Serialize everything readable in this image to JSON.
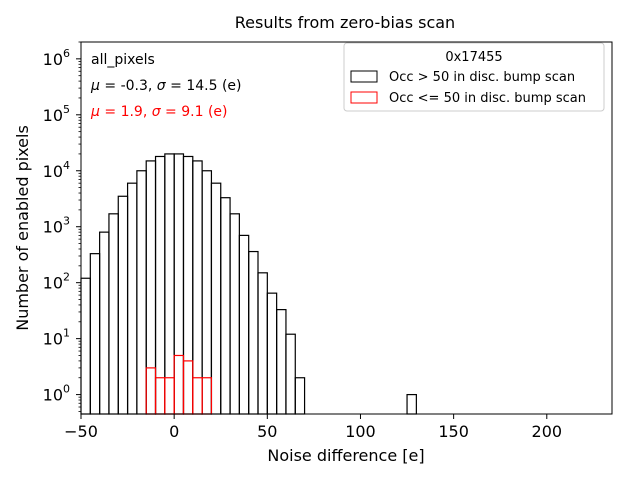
{
  "chart_data": {
    "type": "histogram",
    "title": "Results from zero-bias scan",
    "xlabel": "Noise difference [e]",
    "ylabel": "Number of enabled pixels",
    "xlim": [
      -50,
      235
    ],
    "ylim": [
      0.45,
      2000000
    ],
    "yscale": "log",
    "xticks": [
      -50,
      0,
      50,
      100,
      150,
      200
    ],
    "xtick_labels": [
      "−50",
      "0",
      "50",
      "100",
      "150",
      "200"
    ],
    "yticks": [
      1,
      10,
      100,
      1000,
      10000,
      100000,
      1000000
    ],
    "ytick_labels": [
      {
        "base": "10",
        "exp": "0"
      },
      {
        "base": "10",
        "exp": "1"
      },
      {
        "base": "10",
        "exp": "2"
      },
      {
        "base": "10",
        "exp": "3"
      },
      {
        "base": "10",
        "exp": "4"
      },
      {
        "base": "10",
        "exp": "5"
      },
      {
        "base": "10",
        "exp": "6"
      }
    ],
    "bin_width": 5,
    "annotations": {
      "label": "all_pixels",
      "stats_black": {
        "mu": "-0.3",
        "sigma": "14.5",
        "unit": "(e)"
      },
      "stats_red": {
        "mu": "1.9",
        "sigma": "9.1",
        "unit": "(e)"
      }
    },
    "legend": {
      "title": "0x17455",
      "position": "top-right"
    },
    "series": [
      {
        "name": "Occ > 50 in disc. bump scan",
        "color": "#000000",
        "bins": [
          {
            "x0": -50,
            "v": 120
          },
          {
            "x0": -45,
            "v": 330
          },
          {
            "x0": -40,
            "v": 800
          },
          {
            "x0": -35,
            "v": 1700
          },
          {
            "x0": -30,
            "v": 3500
          },
          {
            "x0": -25,
            "v": 6000
          },
          {
            "x0": -20,
            "v": 10000
          },
          {
            "x0": -15,
            "v": 15000
          },
          {
            "x0": -10,
            "v": 18000
          },
          {
            "x0": -5,
            "v": 20000
          },
          {
            "x0": 0,
            "v": 20000
          },
          {
            "x0": 5,
            "v": 18000
          },
          {
            "x0": 10,
            "v": 15000
          },
          {
            "x0": 15,
            "v": 10000
          },
          {
            "x0": 20,
            "v": 6000
          },
          {
            "x0": 25,
            "v": 3300
          },
          {
            "x0": 30,
            "v": 1700
          },
          {
            "x0": 35,
            "v": 700
          },
          {
            "x0": 40,
            "v": 360
          },
          {
            "x0": 45,
            "v": 150
          },
          {
            "x0": 50,
            "v": 65
          },
          {
            "x0": 55,
            "v": 33
          },
          {
            "x0": 60,
            "v": 12
          },
          {
            "x0": 65,
            "v": 2
          },
          {
            "x0": 125,
            "v": 1
          }
        ]
      },
      {
        "name": "Occ <= 50 in disc. bump scan",
        "color": "#ff0000",
        "bins": [
          {
            "x0": -15,
            "v": 3
          },
          {
            "x0": -10,
            "v": 2
          },
          {
            "x0": -5,
            "v": 2
          },
          {
            "x0": 0,
            "v": 5
          },
          {
            "x0": 5,
            "v": 4
          },
          {
            "x0": 10,
            "v": 2
          },
          {
            "x0": 15,
            "v": 2
          }
        ]
      }
    ]
  }
}
